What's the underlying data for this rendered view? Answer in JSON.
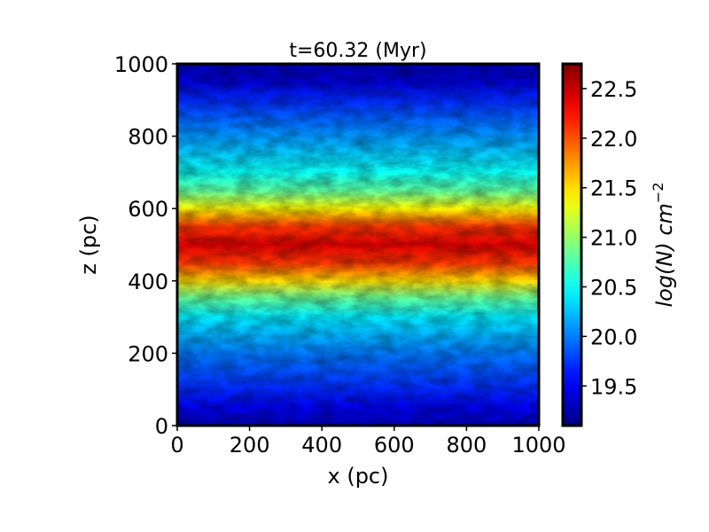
{
  "chart_data": {
    "type": "heatmap",
    "title": "t=60.32 (Myr)",
    "xlabel": "x (pc)",
    "ylabel": "z (pc)",
    "xlim": [
      0,
      1000
    ],
    "ylim": [
      0,
      1000
    ],
    "x_ticks": [
      0,
      200,
      400,
      600,
      800,
      1000
    ],
    "y_ticks": [
      0,
      200,
      400,
      600,
      800,
      1000
    ],
    "colorbar": {
      "label": "log(N) cm^-2",
      "label_main": "log(N) cm",
      "label_exponent": "−2",
      "range": [
        19.1,
        22.75
      ],
      "ticks": [
        19.5,
        20.0,
        20.5,
        21.0,
        21.5,
        22.0,
        22.5
      ],
      "tick_labels": [
        "19.5",
        "20.0",
        "20.5",
        "21.0",
        "21.5",
        "22.0",
        "22.5"
      ],
      "colormap": "jet"
    },
    "vertical_profile": {
      "z": [
        0,
        50,
        100,
        200,
        300,
        350,
        400,
        450,
        500,
        550,
        600,
        650,
        700,
        800,
        900,
        950,
        1000
      ],
      "log_n": [
        19.3,
        19.5,
        19.7,
        20.0,
        20.4,
        20.8,
        21.5,
        22.1,
        22.4,
        22.1,
        21.4,
        20.8,
        20.5,
        20.1,
        19.7,
        19.4,
        19.3
      ]
    }
  }
}
